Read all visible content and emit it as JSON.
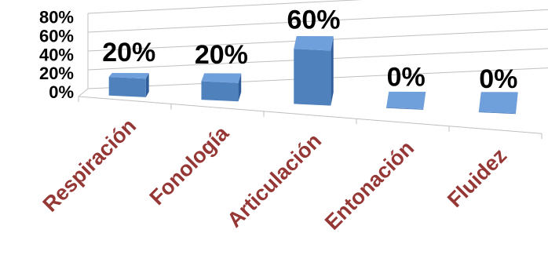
{
  "chart_data": {
    "type": "bar",
    "style": "3d-perspective",
    "categories": [
      "Respiración",
      "Fonología",
      "Articulación",
      "Entonación",
      "Fluidez"
    ],
    "values": [
      20,
      20,
      60,
      0,
      0
    ],
    "data_labels": [
      "20%",
      "20%",
      "60%",
      "0%",
      "0%"
    ],
    "y_ticks": [
      "0%",
      "20%",
      "40%",
      "60%",
      "80%"
    ],
    "ylim": [
      0,
      80
    ],
    "grid": true,
    "legend": "none",
    "colors": {
      "bar": "#4f81bd",
      "bar_top": "#6fa0dc",
      "bar_side": "#2f5d99",
      "category_text": "#953735",
      "grid": "#bfbfbf"
    }
  }
}
